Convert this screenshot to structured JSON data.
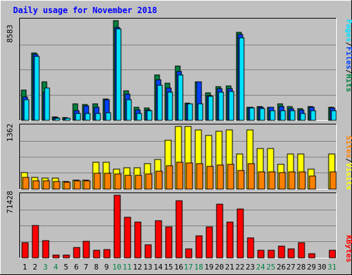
{
  "title": "Daily usage for November 2018",
  "colors": {
    "background": "#c0c0c0",
    "panel": "#c0c0c0",
    "title": "#0000ff",
    "grid": "#808080",
    "hits": "#008040",
    "files": "#0040ff",
    "pages": "#00e0ff",
    "visits": "#ffff00",
    "sites": "#ff8000",
    "kbytes": "#ff0000",
    "label_slash": "#000000",
    "weekday": "#000000",
    "weekend": "#008040"
  },
  "panels": {
    "top": {
      "max_label": "8583",
      "legend": [
        {
          "text": "Pages",
          "color": "#00e0ff"
        },
        {
          "text": "/",
          "color": "#000000"
        },
        {
          "text": "Files",
          "color": "#0040ff"
        },
        {
          "text": "/",
          "color": "#000000"
        },
        {
          "text": "Hits",
          "color": "#008040"
        }
      ]
    },
    "middle": {
      "max_label": "1362",
      "legend": [
        {
          "text": "Sites",
          "color": "#ff8000"
        },
        {
          "text": "/",
          "color": "#000000"
        },
        {
          "text": "Visits",
          "color": "#ffff00"
        }
      ]
    },
    "bottom": {
      "max_label": "71428",
      "legend": [
        {
          "text": "KBytes",
          "color": "#ff0000"
        }
      ]
    }
  },
  "chart_data": {
    "type": "bar",
    "title": "Daily usage for November 2018",
    "categories": [
      "1",
      "2",
      "3",
      "4",
      "5",
      "6",
      "7",
      "8",
      "9",
      "10",
      "11",
      "12",
      "13",
      "14",
      "15",
      "16",
      "17",
      "18",
      "19",
      "20",
      "21",
      "22",
      "23",
      "24",
      "25",
      "26",
      "27",
      "28",
      "29",
      "30",
      "31"
    ],
    "weekend_days": [
      "3",
      "4",
      "10",
      "11",
      "17",
      "18",
      "24",
      "25",
      "31"
    ],
    "panels": [
      {
        "name": "top",
        "ylim": [
          0,
          8583
        ],
        "series": [
          {
            "name": "Hits",
            "values": [
              2600,
              5800,
              3300,
              300,
              260,
              1450,
              1350,
              1400,
              1850,
              8583,
              2550,
              1150,
              1050,
              3900,
              3200,
              4700,
              1500,
              3300,
              2350,
              2900,
              2950,
              7600,
              1150,
              1200,
              1150,
              1400,
              1200,
              1000,
              1200,
              0,
              1150
            ]
          },
          {
            "name": "Files",
            "values": [
              2000,
              5700,
              2400,
              250,
              200,
              800,
              1250,
              1150,
              1800,
              8000,
              2250,
              900,
              900,
              3500,
              2800,
              4200,
              1450,
              3300,
              2150,
              2700,
              2750,
              7400,
              1100,
              1100,
              1100,
              1200,
              1000,
              900,
              1100,
              0,
              1050
            ]
          },
          {
            "name": "Pages",
            "values": [
              1750,
              5500,
              2800,
              200,
              150,
              600,
              600,
              600,
              650,
              7900,
              1750,
              600,
              850,
              3000,
              2400,
              3900,
              1400,
              1450,
              2100,
              2450,
              2500,
              7100,
              1050,
              1000,
              850,
              850,
              800,
              600,
              850,
              0,
              850
            ]
          }
        ]
      },
      {
        "name": "middle",
        "ylim": [
          0,
          1362
        ],
        "series": [
          {
            "name": "Visits",
            "values": [
              360,
              260,
              240,
              240,
              160,
              200,
              200,
              580,
              580,
              440,
              460,
              460,
              560,
              640,
              1060,
              1362,
              1362,
              1290,
              1160,
              1250,
              1290,
              760,
              1290,
              880,
              880,
              540,
              770,
              770,
              440,
              0,
              770
            ]
          },
          {
            "name": "Sites",
            "values": [
              250,
              180,
              180,
              170,
              150,
              180,
              180,
              340,
              340,
              330,
              300,
              300,
              330,
              390,
              510,
              580,
              570,
              550,
              500,
              530,
              540,
              400,
              560,
              370,
              370,
              360,
              380,
              380,
              280,
              0,
              380
            ]
          }
        ]
      },
      {
        "name": "bottom",
        "ylim": [
          0,
          71428
        ],
        "series": [
          {
            "name": "KBytes",
            "values": [
              17000,
              37000,
              19500,
              3000,
              3200,
              11500,
              18500,
              8600,
              9500,
              71428,
              46000,
              40500,
              15200,
              42000,
              35500,
              65500,
              10500,
              25500,
              35200,
              61500,
              41000,
              56000,
              23000,
              8600,
              8500,
              13500,
              10000,
              17600,
              4500,
              0,
              8800
            ]
          }
        ]
      }
    ]
  }
}
